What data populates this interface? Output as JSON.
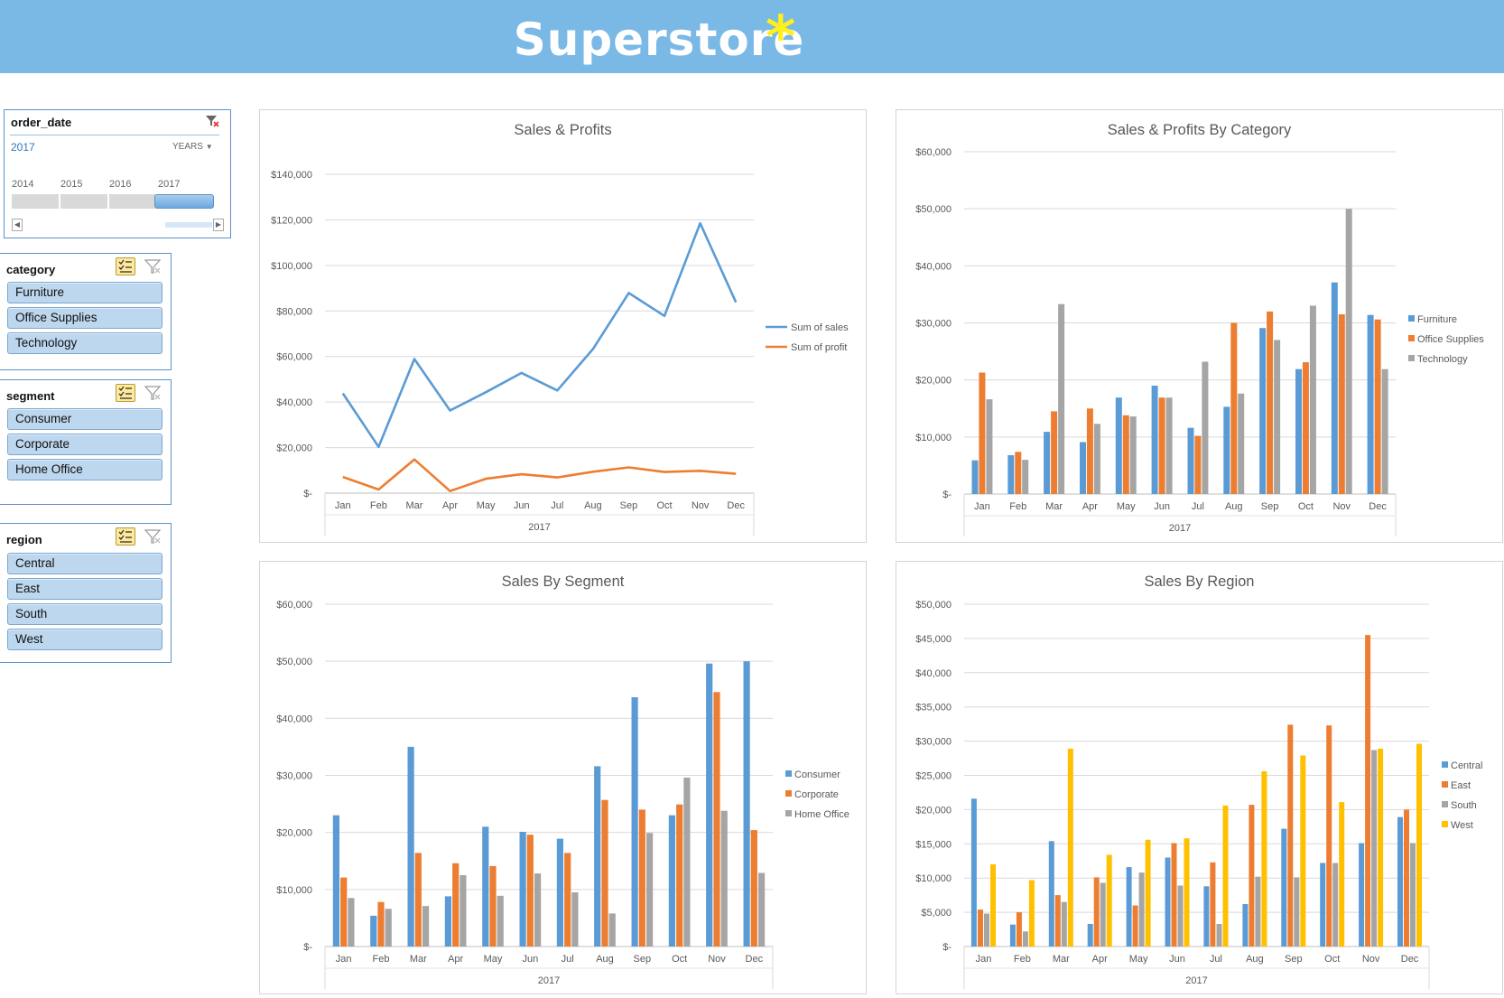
{
  "header": {
    "title": "Superstore",
    "asterisk": "*"
  },
  "timeline": {
    "field": "order_date",
    "selected": "2017",
    "level": "YEARS",
    "years": [
      "2014",
      "2015",
      "2016",
      "2017"
    ]
  },
  "slicers": [
    {
      "title": "category",
      "items": [
        "Furniture",
        "Office Supplies",
        "Technology"
      ]
    },
    {
      "title": "segment",
      "items": [
        "Consumer",
        "Corporate",
        "Home Office"
      ]
    },
    {
      "title": "region",
      "items": [
        "Central",
        "East",
        "South",
        "West"
      ]
    }
  ],
  "colors": {
    "header": "#7ab8e6",
    "asterisk": "#ffef1a",
    "blue": "#5b9bd5",
    "orange": "#ed7d31",
    "gray": "#a5a5a5",
    "yellow": "#ffc000"
  },
  "chart_data": [
    {
      "id": "sales-profits",
      "type": "line",
      "title": "Sales & Profits",
      "categories": [
        "Jan",
        "Feb",
        "Mar",
        "Apr",
        "May",
        "Jun",
        "Jul",
        "Aug",
        "Sep",
        "Oct",
        "Nov",
        "Dec"
      ],
      "group_label": "2017",
      "ylim": [
        0,
        140000
      ],
      "yticks": [
        0,
        20000,
        40000,
        60000,
        80000,
        100000,
        120000,
        140000
      ],
      "ytick_labels": [
        "$-",
        "$20,000",
        "$40,000",
        "$60,000",
        "$80,000",
        "$100,000",
        "$120,000",
        "$140,000"
      ],
      "grid": true,
      "legend": "right",
      "series": [
        {
          "name": "Sum of sales",
          "color": "#5b9bd5",
          "values": [
            43800,
            20300,
            58900,
            36300,
            44300,
            52800,
            45100,
            63300,
            87900,
            77800,
            118500,
            83800
          ]
        },
        {
          "name": "Sum of profit",
          "color": "#ed7d31",
          "values": [
            7100,
            1600,
            14800,
            900,
            6300,
            8300,
            6900,
            9400,
            11300,
            9300,
            9800,
            8500
          ]
        }
      ]
    },
    {
      "id": "sales-by-category",
      "type": "bar",
      "title": "Sales & Profits By Category",
      "categories": [
        "Jan",
        "Feb",
        "Mar",
        "Apr",
        "May",
        "Jun",
        "Jul",
        "Aug",
        "Sep",
        "Oct",
        "Nov",
        "Dec"
      ],
      "group_label": "2017",
      "ylim": [
        0,
        60000
      ],
      "yticks": [
        0,
        10000,
        20000,
        30000,
        40000,
        50000,
        60000
      ],
      "ytick_labels": [
        "$-",
        "$10,000",
        "$20,000",
        "$30,000",
        "$40,000",
        "$50,000",
        "$60,000"
      ],
      "grid": true,
      "legend": "right",
      "series": [
        {
          "name": "Furniture",
          "color": "#5b9bd5",
          "values": [
            5900,
            6800,
            10900,
            9100,
            16900,
            19000,
            11600,
            15300,
            29100,
            21900,
            37100,
            31400
          ]
        },
        {
          "name": "Office Supplies",
          "color": "#ed7d31",
          "values": [
            21300,
            7400,
            14500,
            15000,
            13800,
            16900,
            10200,
            30000,
            32000,
            23100,
            31500,
            30600
          ]
        },
        {
          "name": "Technology",
          "color": "#a5a5a5",
          "values": [
            16600,
            6000,
            33300,
            12300,
            13600,
            16900,
            23200,
            17600,
            27000,
            33000,
            50000,
            21900
          ]
        }
      ]
    },
    {
      "id": "sales-by-segment",
      "type": "bar",
      "title": "Sales By Segment",
      "categories": [
        "Jan",
        "Feb",
        "Mar",
        "Apr",
        "May",
        "Jun",
        "Jul",
        "Aug",
        "Sep",
        "Oct",
        "Nov",
        "Dec"
      ],
      "group_label": "2017",
      "ylim": [
        0,
        60000
      ],
      "yticks": [
        0,
        10000,
        20000,
        30000,
        40000,
        50000,
        60000
      ],
      "ytick_labels": [
        "$-",
        "$10,000",
        "$20,000",
        "$30,000",
        "$40,000",
        "$50,000",
        "$60,000"
      ],
      "grid": true,
      "legend": "right",
      "series": [
        {
          "name": "Consumer",
          "color": "#5b9bd5",
          "values": [
            23000,
            5400,
            35000,
            8800,
            21000,
            20100,
            18900,
            31600,
            43700,
            23000,
            49600,
            50000
          ]
        },
        {
          "name": "Corporate",
          "color": "#ed7d31",
          "values": [
            12100,
            7800,
            16400,
            14600,
            14100,
            19600,
            16400,
            25700,
            24000,
            24900,
            44600,
            20400
          ]
        },
        {
          "name": "Home Office",
          "color": "#a5a5a5",
          "values": [
            8500,
            6600,
            7100,
            12500,
            8900,
            12800,
            9500,
            5800,
            19900,
            29600,
            23800,
            12900
          ]
        }
      ]
    },
    {
      "id": "sales-by-region",
      "type": "bar",
      "title": "Sales By Region",
      "categories": [
        "Jan",
        "Feb",
        "Mar",
        "Apr",
        "May",
        "Jun",
        "Jul",
        "Aug",
        "Sep",
        "Oct",
        "Nov",
        "Dec"
      ],
      "group_label": "2017",
      "ylim": [
        0,
        50000
      ],
      "yticks": [
        0,
        5000,
        10000,
        15000,
        20000,
        25000,
        30000,
        35000,
        40000,
        45000,
        50000
      ],
      "ytick_labels": [
        "$-",
        "$5,000",
        "$10,000",
        "$15,000",
        "$20,000",
        "$25,000",
        "$30,000",
        "$35,000",
        "$40,000",
        "$45,000",
        "$50,000"
      ],
      "grid": true,
      "legend": "right",
      "series": [
        {
          "name": "Central",
          "color": "#5b9bd5",
          "values": [
            21600,
            3200,
            15400,
            3300,
            11600,
            13000,
            8800,
            6200,
            17200,
            12200,
            15100,
            18900
          ]
        },
        {
          "name": "East",
          "color": "#ed7d31",
          "values": [
            5400,
            5000,
            7500,
            10100,
            6000,
            15100,
            12300,
            20700,
            32400,
            32300,
            45500,
            20000
          ]
        },
        {
          "name": "South",
          "color": "#a5a5a5",
          "values": [
            4800,
            2200,
            6500,
            9300,
            10800,
            8900,
            3300,
            10200,
            10100,
            12200,
            28700,
            15100
          ]
        },
        {
          "name": "West",
          "color": "#ffc000",
          "values": [
            12000,
            9700,
            28900,
            13400,
            15600,
            15800,
            20600,
            25600,
            27900,
            21100,
            28900,
            29600
          ]
        }
      ]
    }
  ]
}
